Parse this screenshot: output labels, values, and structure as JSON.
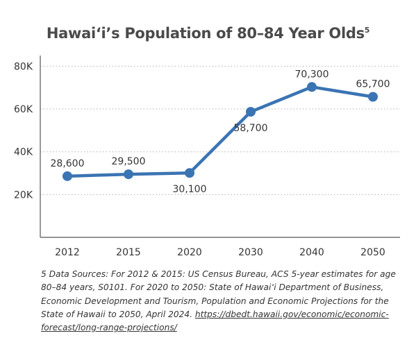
{
  "chart_data": {
    "type": "line",
    "title": "Hawai‘i’s Population of 80–84 Year Olds",
    "title_footnote_mark": "5",
    "categories": [
      "2012",
      "2015",
      "2020",
      "2030",
      "2040",
      "2050"
    ],
    "series": [
      {
        "values": [
          28600,
          29500,
          30100,
          58700,
          70300,
          65700
        ]
      }
    ],
    "data_labels": [
      "28,600",
      "29,500",
      "30,100",
      "58,700",
      "70,300",
      "65,700"
    ],
    "data_label_position": [
      "above",
      "above",
      "below",
      "below",
      "above",
      "above"
    ],
    "yticks": [
      20000,
      40000,
      60000,
      80000
    ],
    "ytick_labels": [
      "20K",
      "40K",
      "60K",
      "80K"
    ],
    "ylim": [
      0,
      85000
    ],
    "xlabel": "",
    "ylabel": "",
    "grid": "horizontal dotted",
    "legend": "none",
    "colors": {
      "line": "#3a74b3",
      "axis": "#555555",
      "grid": "#b0b0b0"
    }
  },
  "footnote": {
    "text": "5 Data Sources: For 2012 & 2015: US Census Bureau, ACS 5-year estimates for age 80–84 years, S0101. For 2020 to 2050: State of Hawai‘i Department of Business, Economic Development and Tourism, Population and Economic Projections for the State of Hawaii to 2050, April 2024.",
    "url": "https://dbedt.hawaii.gov/economic/economic-forecast/long-range-projections/"
  }
}
